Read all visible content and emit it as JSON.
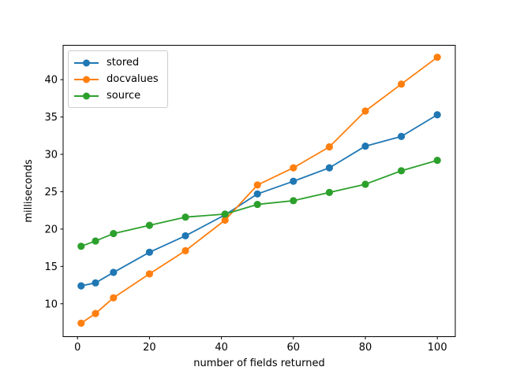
{
  "chart_data": {
    "type": "line",
    "title": "",
    "xlabel": "number of fields returned",
    "ylabel": "milliseconds",
    "x": [
      1,
      5,
      10,
      20,
      30,
      41,
      50,
      60,
      70,
      80,
      90,
      100
    ],
    "series": [
      {
        "name": "stored",
        "color": "#1f77b4",
        "values": [
          12.4,
          12.8,
          14.2,
          16.9,
          19.1,
          21.9,
          24.7,
          26.4,
          28.2,
          31.1,
          32.4,
          35.3
        ]
      },
      {
        "name": "docvalues",
        "color": "#ff7f0e",
        "values": [
          7.4,
          8.7,
          10.8,
          14.0,
          17.1,
          21.2,
          25.9,
          28.2,
          31.0,
          35.8,
          39.4,
          43.0
        ]
      },
      {
        "name": "source",
        "color": "#2ca02c",
        "values": [
          17.7,
          18.4,
          19.4,
          20.5,
          21.6,
          22.0,
          23.3,
          23.8,
          24.9,
          26.0,
          27.8,
          29.2
        ]
      }
    ],
    "xticks": [
      0,
      20,
      40,
      60,
      80,
      100
    ],
    "yticks": [
      10,
      15,
      20,
      25,
      30,
      35,
      40
    ],
    "xlim": [
      -4.0,
      105.0
    ],
    "ylim": [
      5.6,
      44.6
    ],
    "grid": false,
    "legend_position": "upper-left",
    "marker": "circle"
  },
  "colors": {
    "background": "#ffffff",
    "axis": "#000000",
    "tick_label": "#000000",
    "legend_border": "#cccccc"
  }
}
